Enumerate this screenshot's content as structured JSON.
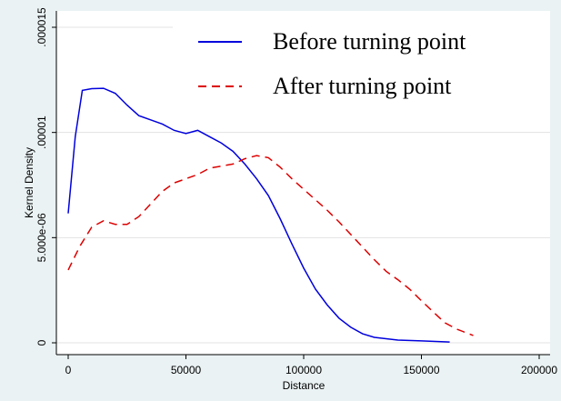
{
  "chart_data": {
    "type": "line",
    "xlabel": "Distance",
    "ylabel": "Kernel Density",
    "xlim": [
      0,
      200000
    ],
    "xticks": [
      0,
      50000,
      100000,
      150000,
      200000
    ],
    "ylim": [
      0,
      1.5e-05
    ],
    "yticks": [
      0,
      {
        "value": 5e-06,
        "label": "5.000e-06"
      },
      {
        "value": 1e-05,
        "label": ".00001"
      },
      {
        "value": 1.5e-05,
        "label": ".000015"
      }
    ],
    "grid": true,
    "legend": "top-right",
    "series": [
      {
        "name": "Before turning point",
        "color": "#0000dd",
        "dash": "solid",
        "x": [
          0,
          3000,
          6000,
          10000,
          15000,
          20000,
          25000,
          30000,
          35000,
          40000,
          45000,
          50000,
          55000,
          60000,
          65000,
          70000,
          75000,
          80000,
          85000,
          90000,
          95000,
          100000,
          105000,
          110000,
          115000,
          120000,
          125000,
          130000,
          140000,
          150000,
          162000
        ],
        "values": [
          6.15e-06,
          9.8e-06,
          1.2e-05,
          1.208e-05,
          1.21e-05,
          1.186e-05,
          1.13e-05,
          1.08e-05,
          1.06e-05,
          1.04e-05,
          1.01e-05,
          9.95e-06,
          1.01e-05,
          9.8e-06,
          9.5e-06,
          9.1e-06,
          8.5e-06,
          7.8e-06,
          7e-06,
          5.9e-06,
          4.7e-06,
          3.55e-06,
          2.55e-06,
          1.8e-06,
          1.17e-06,
          7.4e-07,
          4.3e-07,
          2.6e-07,
          1.3e-07,
          9e-08,
          4e-08
        ]
      },
      {
        "name": "After turning point",
        "color": "#dd0000",
        "dash": "dashed",
        "x": [
          0,
          5000,
          10000,
          15000,
          20000,
          25000,
          30000,
          35000,
          40000,
          45000,
          50000,
          55000,
          60000,
          65000,
          70000,
          75000,
          80000,
          85000,
          90000,
          95000,
          100000,
          105000,
          110000,
          115000,
          120000,
          125000,
          130000,
          135000,
          140000,
          145000,
          150000,
          155000,
          160000,
          165000,
          172000
        ],
        "values": [
          3.46e-06,
          4.6e-06,
          5.5e-06,
          5.8e-06,
          5.63e-06,
          5.63e-06,
          6e-06,
          6.6e-06,
          7.2e-06,
          7.6e-06,
          7.8e-06,
          8e-06,
          8.3e-06,
          8.4e-06,
          8.5e-06,
          8.75e-06,
          8.9e-06,
          8.8e-06,
          8.35e-06,
          7.8e-06,
          7.3e-06,
          6.8e-06,
          6.3e-06,
          5.75e-06,
          5.15e-06,
          4.55e-06,
          3.95e-06,
          3.4e-06,
          3e-06,
          2.55e-06,
          2e-06,
          1.47e-06,
          9.5e-07,
          6.5e-07,
          3.5e-07
        ]
      }
    ]
  }
}
